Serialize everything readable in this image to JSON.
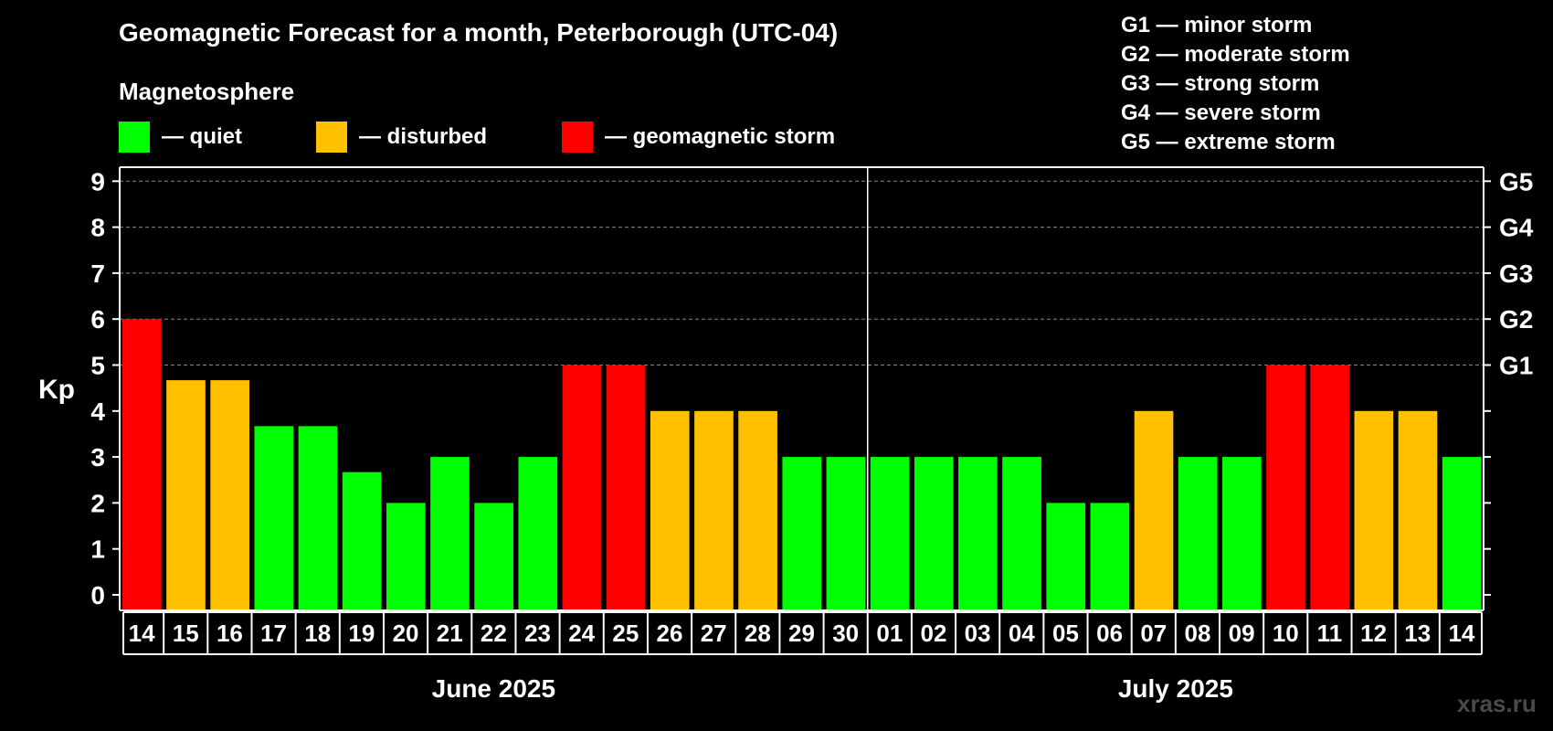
{
  "chart_data": {
    "type": "bar",
    "title": "Geomagnetic Forecast for a month, Peterborough (UTC-04)",
    "subtitle": "Magnetosphere",
    "ylabel": "Kp",
    "ylim": [
      0,
      9
    ],
    "yticks": [
      "0",
      "1",
      "2",
      "3",
      "4",
      "5",
      "6",
      "7",
      "8",
      "9"
    ],
    "right_axis_labels": [
      {
        "kp": 5,
        "label": "G1"
      },
      {
        "kp": 6,
        "label": "G2"
      },
      {
        "kp": 7,
        "label": "G3"
      },
      {
        "kp": 8,
        "label": "G4"
      },
      {
        "kp": 9,
        "label": "G5"
      }
    ],
    "colors": {
      "quiet": "#00ff00",
      "disturbed": "#ffc000",
      "storm": "#ff0000"
    },
    "legend": [
      {
        "key": "quiet",
        "label": "— quiet"
      },
      {
        "key": "disturbed",
        "label": "— disturbed"
      },
      {
        "key": "storm",
        "label": "— geomagnetic storm"
      }
    ],
    "storm_levels": [
      "G1 — minor storm",
      "G2 — moderate storm",
      "G3 — strong storm",
      "G4 — severe storm",
      "G5 — extreme storm"
    ],
    "months": [
      {
        "label": "June 2025",
        "start": 0,
        "end": 16
      },
      {
        "label": "July 2025",
        "start": 17,
        "end": 30
      }
    ],
    "categories": [
      "14",
      "15",
      "16",
      "17",
      "18",
      "19",
      "20",
      "21",
      "22",
      "23",
      "24",
      "25",
      "26",
      "27",
      "28",
      "29",
      "30",
      "01",
      "02",
      "03",
      "04",
      "05",
      "06",
      "07",
      "08",
      "09",
      "10",
      "11",
      "12",
      "13",
      "14"
    ],
    "values": [
      6,
      4.67,
      4.67,
      3.67,
      3.67,
      2.67,
      2,
      3,
      2,
      3,
      5,
      5,
      4,
      4,
      4,
      3,
      3,
      3,
      3,
      3,
      3,
      2,
      2,
      4,
      3,
      3,
      5,
      5,
      4,
      4,
      3
    ],
    "levels": [
      "storm",
      "disturbed",
      "disturbed",
      "quiet",
      "quiet",
      "quiet",
      "quiet",
      "quiet",
      "quiet",
      "quiet",
      "storm",
      "storm",
      "disturbed",
      "disturbed",
      "disturbed",
      "quiet",
      "quiet",
      "quiet",
      "quiet",
      "quiet",
      "quiet",
      "quiet",
      "quiet",
      "disturbed",
      "quiet",
      "quiet",
      "storm",
      "storm",
      "disturbed",
      "disturbed",
      "quiet"
    ]
  },
  "watermark": "xras.ru"
}
